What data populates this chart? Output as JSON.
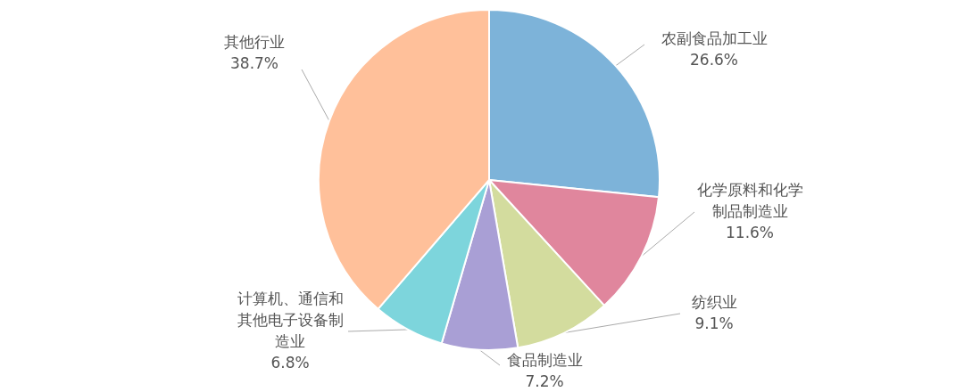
{
  "chart_data": {
    "type": "pie",
    "categories": [
      "农副食品加工业",
      "化学原料和化学制品制造业",
      "纺织业",
      "食品制造业",
      "计算机、通信和其他电子设备制造业",
      "其他行业"
    ],
    "values": [
      26.6,
      11.6,
      9.1,
      7.2,
      6.8,
      38.7
    ],
    "value_labels": [
      "26.6%",
      "11.6%",
      "9.1%",
      "7.2%",
      "6.8%",
      "38.7%"
    ],
    "colors": [
      "#7db3d9",
      "#e0869d",
      "#d3dc9e",
      "#a99fd5",
      "#7dd5dc",
      "#ffc09a"
    ]
  }
}
